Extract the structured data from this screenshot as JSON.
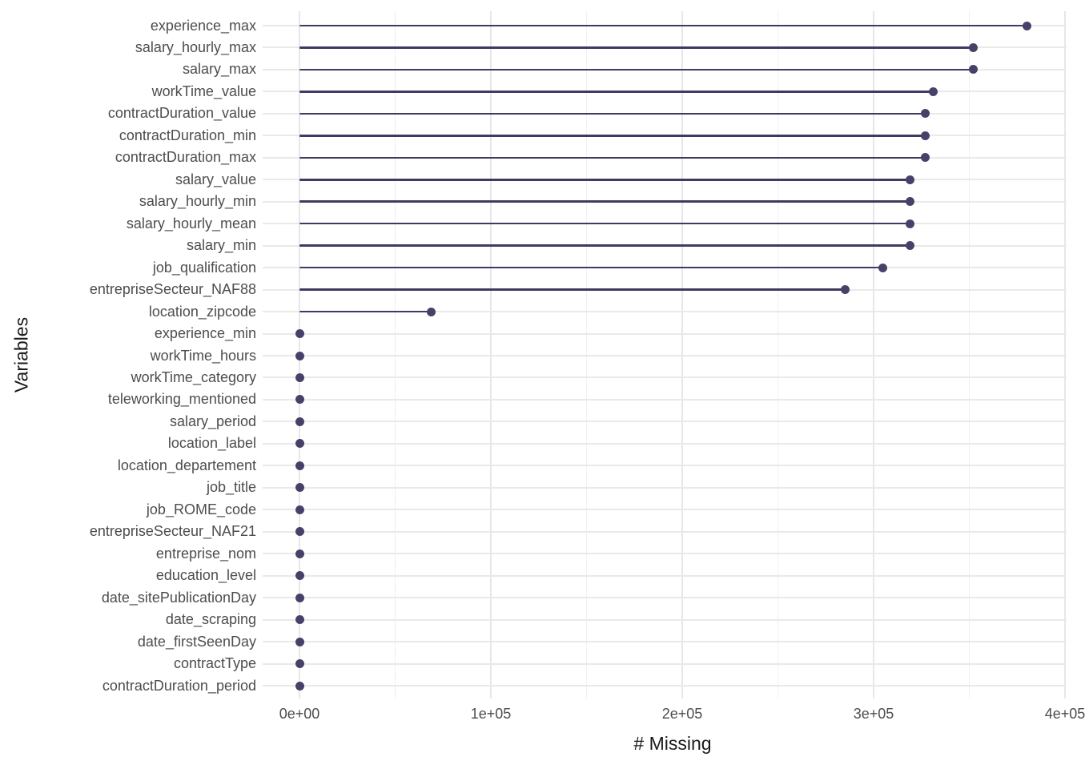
{
  "chart_data": {
    "type": "bar",
    "variant": "lollipop",
    "orientation": "horizontal",
    "title": "",
    "xlabel": "# Missing",
    "ylabel": "Variables",
    "xlim": [
      0,
      400000
    ],
    "grid": true,
    "legend": "none",
    "x_ticks": [
      {
        "value": 0,
        "label": "0e+00"
      },
      {
        "value": 100000,
        "label": "1e+05"
      },
      {
        "value": 200000,
        "label": "2e+05"
      },
      {
        "value": 300000,
        "label": "3e+05"
      },
      {
        "value": 400000,
        "label": "4e+05"
      }
    ],
    "x_minor_ticks": [
      50000,
      150000,
      250000,
      350000
    ],
    "categories": [
      "experience_max",
      "salary_hourly_max",
      "salary_max",
      "workTime_value",
      "contractDuration_value",
      "contractDuration_min",
      "contractDuration_max",
      "salary_value",
      "salary_hourly_min",
      "salary_hourly_mean",
      "salary_min",
      "job_qualification",
      "entrepriseSecteur_NAF88",
      "location_zipcode",
      "experience_min",
      "workTime_hours",
      "workTime_category",
      "teleworking_mentioned",
      "salary_period",
      "location_label",
      "location_departement",
      "job_title",
      "job_ROME_code",
      "entrepriseSecteur_NAF21",
      "entreprise_nom",
      "education_level",
      "date_sitePublicationDay",
      "date_scraping",
      "date_firstSeenDay",
      "contractType",
      "contractDuration_period"
    ],
    "values": [
      380000,
      352000,
      352000,
      331000,
      327000,
      327000,
      327000,
      319000,
      319000,
      319000,
      319000,
      305000,
      285000,
      69000,
      0,
      0,
      0,
      0,
      0,
      0,
      0,
      0,
      0,
      0,
      0,
      0,
      0,
      0,
      0,
      0,
      0
    ],
    "colors": {
      "stem": "#3e3b62",
      "point": "#474169",
      "grid_major": "#e7e7e7",
      "grid_minor": "#f0f0f0",
      "tick_text": "#4d4d4d",
      "title_text": "#1a1a1a",
      "background": "#ffffff"
    }
  }
}
